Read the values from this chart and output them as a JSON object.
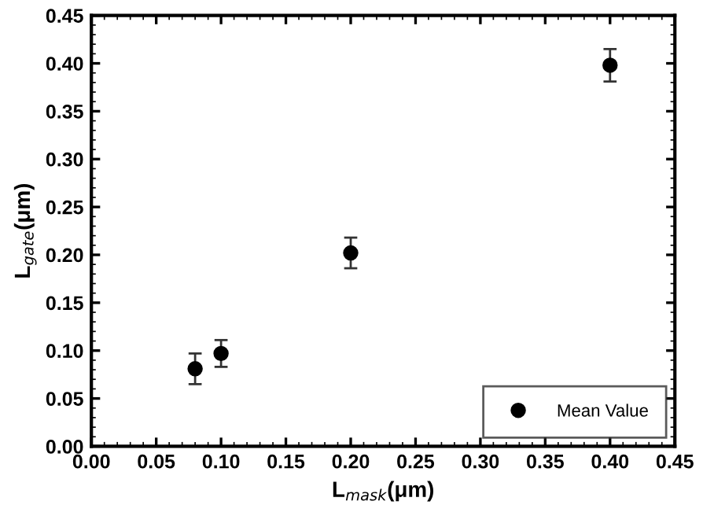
{
  "chart_data": {
    "type": "scatter",
    "xlabel": "L$_{mask}$(μm)",
    "ylabel": "L$_{gate}$(μm)",
    "x": [
      0.08,
      0.1,
      0.2,
      0.4
    ],
    "series": [
      {
        "name": "Mean Value",
        "color": "#000000",
        "values": [
          0.081,
          0.097,
          0.202,
          0.398
        ],
        "errors": [
          0.016,
          0.014,
          0.016,
          0.017
        ]
      }
    ],
    "xlim": [
      0,
      0.45
    ],
    "ylim": [
      0,
      0.45
    ],
    "xticks": [
      {
        "value": 0,
        "label": "0.00"
      },
      {
        "value": 0.05,
        "label": "0.05"
      },
      {
        "value": 0.1,
        "label": "0.10"
      },
      {
        "value": 0.15,
        "label": "0.15"
      },
      {
        "value": 0.2,
        "label": "0.20"
      },
      {
        "value": 0.25,
        "label": "0.25"
      },
      {
        "value": 0.3,
        "label": "0.30"
      },
      {
        "value": 0.35,
        "label": "0.35"
      },
      {
        "value": 0.4,
        "label": "0.40"
      },
      {
        "value": 0.45,
        "label": "0.45"
      }
    ],
    "yticks": [
      {
        "value": 0,
        "label": "0.00"
      },
      {
        "value": 0.05,
        "label": "0.05"
      },
      {
        "value": 0.1,
        "label": "0.10"
      },
      {
        "value": 0.15,
        "label": "0.15"
      },
      {
        "value": 0.2,
        "label": "0.20"
      },
      {
        "value": 0.25,
        "label": "0.25"
      },
      {
        "value": 0.3,
        "label": "0.30"
      },
      {
        "value": 0.35,
        "label": "0.35"
      },
      {
        "value": 0.4,
        "label": "0.40"
      },
      {
        "value": 0.45,
        "label": "0.45"
      }
    ],
    "marker": "circle",
    "legend": "lower right",
    "grid": false
  }
}
